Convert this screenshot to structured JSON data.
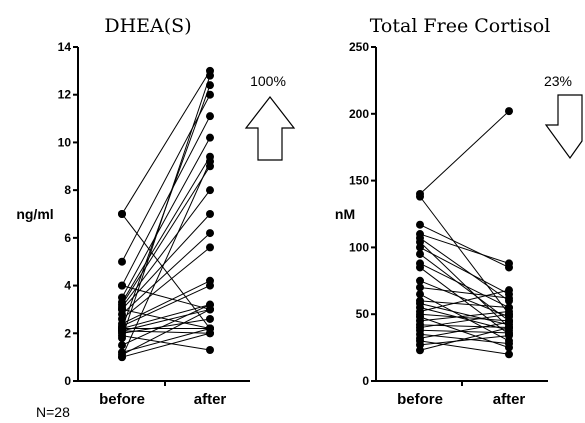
{
  "footnote": "N=28",
  "chart_data": [
    {
      "type": "line",
      "title": "DHEA(S)",
      "ylabel": "ng/ml",
      "xlabel": "",
      "categories": [
        "before",
        "after"
      ],
      "ylim": [
        0,
        14
      ],
      "yticks": [
        0,
        2,
        4,
        6,
        8,
        10,
        12,
        14
      ],
      "grid": false,
      "change_percent": "100%",
      "arrow_direction": "up",
      "pairs": [
        [
          7.0,
          13.0
        ],
        [
          7.0,
          2.2
        ],
        [
          5.0,
          12.0
        ],
        [
          4.0,
          11.1
        ],
        [
          4.0,
          3.0
        ],
        [
          3.5,
          10.2
        ],
        [
          3.3,
          9.4
        ],
        [
          3.2,
          9.0
        ],
        [
          3.1,
          8.0
        ],
        [
          3.0,
          7.0
        ],
        [
          3.0,
          2.2
        ],
        [
          2.8,
          6.2
        ],
        [
          2.6,
          5.6
        ],
        [
          2.4,
          4.2
        ],
        [
          2.3,
          4.0
        ],
        [
          2.2,
          3.2
        ],
        [
          2.2,
          2.2
        ],
        [
          2.2,
          12.4
        ],
        [
          2.1,
          3.0
        ],
        [
          2.1,
          2.0
        ],
        [
          2.0,
          2.6
        ],
        [
          1.9,
          1.3
        ],
        [
          1.8,
          12.8
        ],
        [
          1.5,
          3.2
        ],
        [
          1.2,
          2.2
        ],
        [
          1.1,
          3.0
        ],
        [
          1.0,
          9.2
        ],
        [
          1.0,
          2.0
        ]
      ]
    },
    {
      "type": "line",
      "title": "Total Free Cortisol",
      "ylabel": "nM",
      "xlabel": "",
      "categories": [
        "before",
        "after"
      ],
      "ylim": [
        0,
        250
      ],
      "yticks": [
        0,
        50,
        100,
        150,
        200,
        250
      ],
      "grid": false,
      "change_percent": "23%",
      "arrow_direction": "down",
      "pairs": [
        [
          140,
          202
        ],
        [
          138,
          50
        ],
        [
          117,
          85
        ],
        [
          110,
          88
        ],
        [
          107,
          60
        ],
        [
          104,
          40
        ],
        [
          100,
          65
        ],
        [
          95,
          45
        ],
        [
          88,
          55
        ],
        [
          85,
          35
        ],
        [
          75,
          48
        ],
        [
          70,
          62
        ],
        [
          65,
          30
        ],
        [
          60,
          55
        ],
        [
          58,
          42
        ],
        [
          55,
          38
        ],
        [
          52,
          68
        ],
        [
          50,
          45
        ],
        [
          48,
          25
        ],
        [
          45,
          52
        ],
        [
          42,
          40
        ],
        [
          40,
          50
        ],
        [
          38,
          36
        ],
        [
          35,
          28
        ],
        [
          32,
          44
        ],
        [
          30,
          20
        ],
        [
          27,
          34
        ],
        [
          23,
          40
        ]
      ]
    }
  ]
}
